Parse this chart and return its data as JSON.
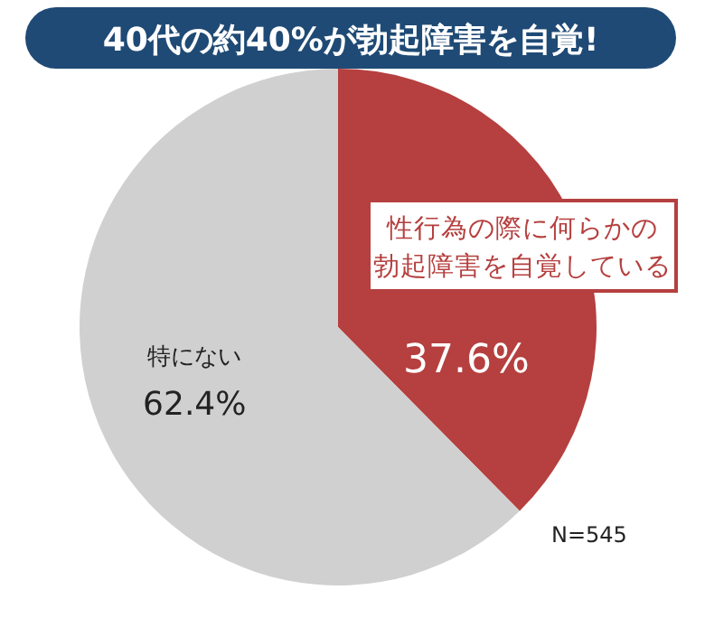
{
  "chart_data": {
    "type": "pie",
    "title": "40代の約40%が勃起障害を自覚!",
    "categories": [
      "性行為の際に何らかの勃起障害を自覚している",
      "特にない"
    ],
    "values": [
      37.6,
      62.4
    ],
    "colors": [
      "#b5403f",
      "#d0d0d0"
    ],
    "value_labels": [
      "37.6%",
      "62.4%"
    ],
    "annotations": [
      "N=545"
    ]
  }
}
